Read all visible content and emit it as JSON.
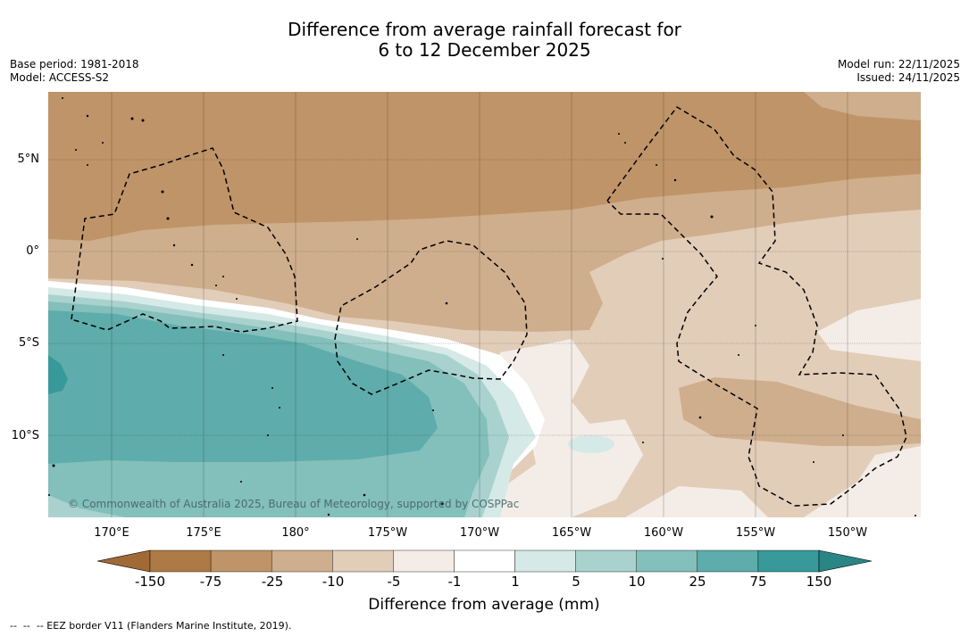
{
  "title": {
    "line1": "Difference from average rainfall forecast for",
    "line2": "6 to 12 December 2025"
  },
  "meta": {
    "base_period": "Base period: 1981-2018",
    "model": "Model: ACCESS-S2",
    "model_run": "Model run: 22/11/2025",
    "issued": "Issued: 24/11/2025"
  },
  "map": {
    "lat_ticks": [
      "5°N",
      "0°",
      "5°S",
      "10°S"
    ],
    "lon_ticks": [
      "170°E",
      "175°E",
      "180°",
      "175°W",
      "170°W",
      "165°W",
      "160°W",
      "155°W",
      "150°W"
    ],
    "copyright": "© Commonwealth of Australia 2025, Bureau of Meteorology, supported by COSPPac"
  },
  "colorbar": {
    "title": "Difference from average (mm)",
    "labels": [
      "-150",
      "-75",
      "-25",
      "-10",
      "-5",
      "-1",
      "1",
      "5",
      "10",
      "25",
      "75",
      "150"
    ],
    "colors": {
      "under": "#a06a36",
      "bins": [
        "#ad7a45",
        "#bf9468",
        "#cfae8d",
        "#e2cdb9",
        "#f4ede7",
        "#ffffff",
        "#d5e9e7",
        "#a9d2cf",
        "#83bfbb",
        "#5eacab",
        "#37999a"
      ],
      "over": "#2a8585"
    }
  },
  "legend": {
    "eez_text": "--  --  -- EEZ border V11 (Flanders Marine Institute, 2019)."
  }
}
